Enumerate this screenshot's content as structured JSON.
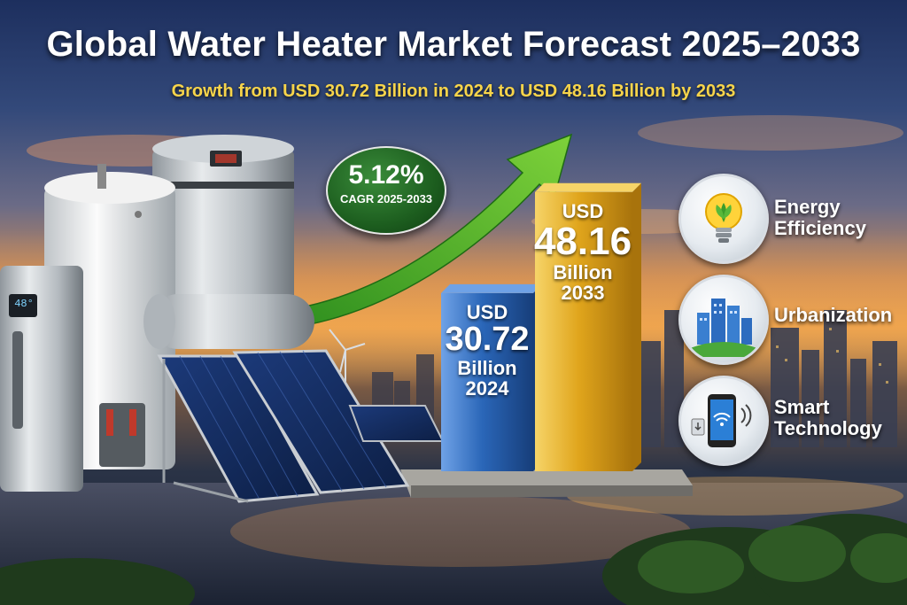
{
  "title": "Global Water Heater Market Forecast 2025–2033",
  "subtitle": "Growth from USD 30.72 Billion in 2024 to USD 48.16 Billion by 2033",
  "cagr": {
    "value": "5.12%",
    "label": "CAGR 2025-2033"
  },
  "chart_data": {
    "type": "bar",
    "title": "Global Water Heater Market Forecast 2025–2033",
    "subtitle": "Growth from USD 30.72 Billion in 2024 to USD 48.16 Billion by 2033",
    "categories": [
      "2024",
      "2033"
    ],
    "values": [
      30.72,
      48.16
    ],
    "unit": "USD Billion",
    "ylim": [
      0,
      55
    ],
    "grid": false,
    "legend": "none",
    "colors": [
      "#2a66b8",
      "#e0a51c"
    ],
    "bars": [
      {
        "currency": "USD",
        "value": "30.72",
        "unit": "Billion",
        "year": "2024"
      },
      {
        "currency": "USD",
        "value": "48.16",
        "unit": "Billion",
        "year": "2033"
      }
    ]
  },
  "drivers": [
    {
      "label": "Energy Efficiency",
      "icon": "lightbulb-leaf-icon"
    },
    {
      "label": "Urbanization",
      "icon": "city-buildings-icon"
    },
    {
      "label": "Smart Technology",
      "icon": "smartphone-wifi-icon"
    }
  ],
  "heater_display": "48°"
}
